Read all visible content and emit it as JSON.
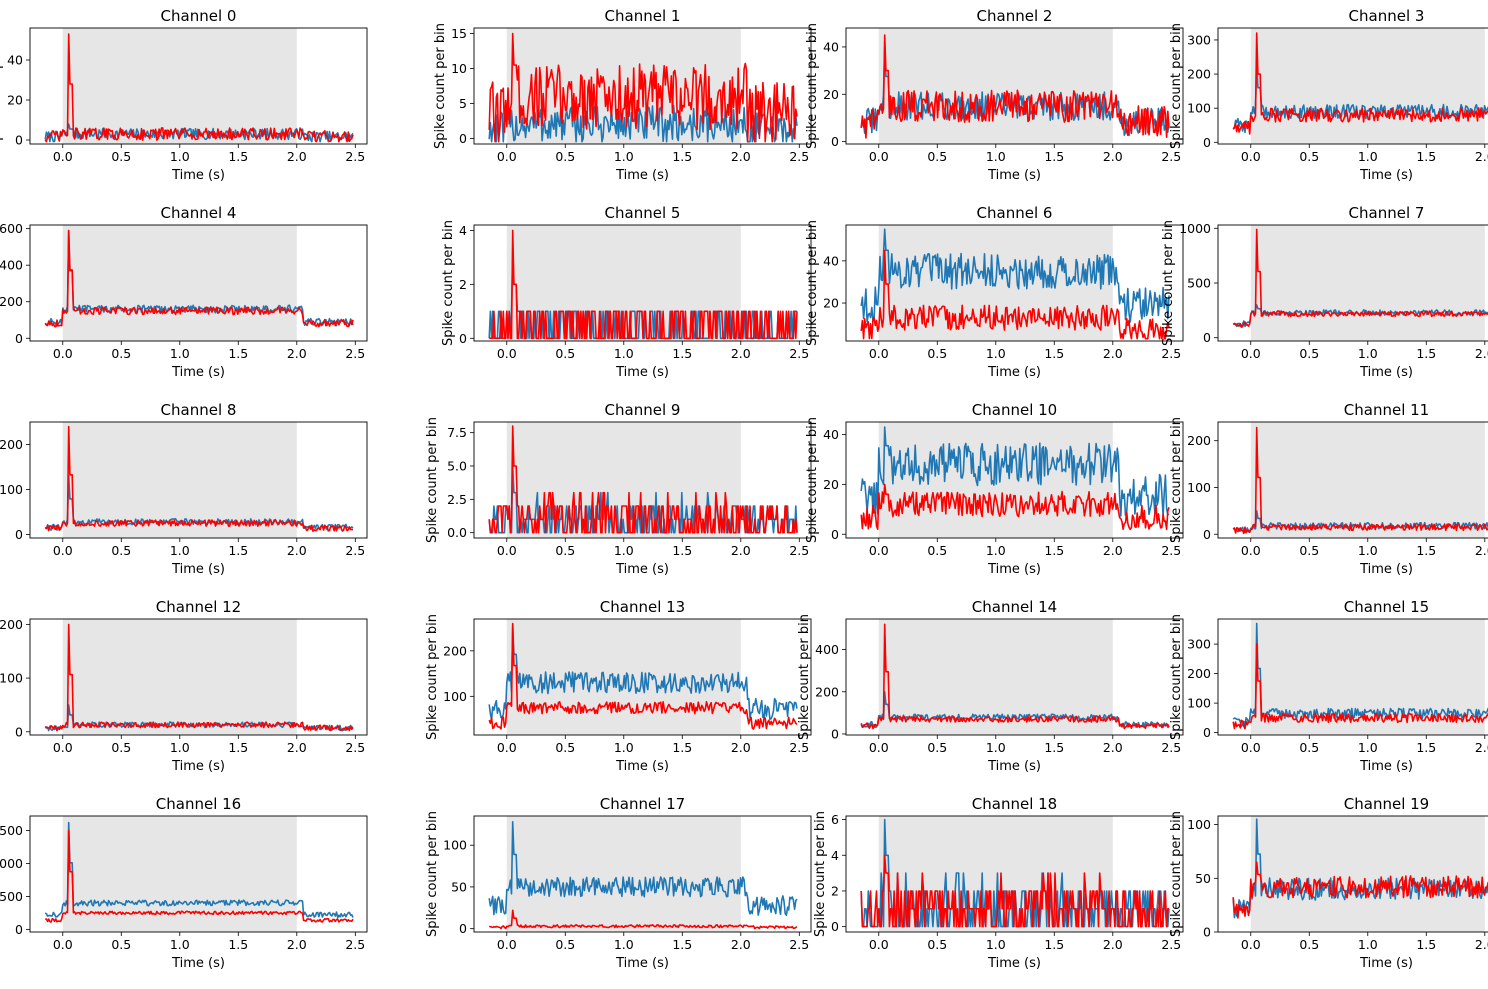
{
  "figure": {
    "xlabel": "Time (s)",
    "ylabel": "Spike count per bin",
    "x_range": [
      -0.15,
      2.48
    ],
    "xlim": [
      -0.28,
      2.6
    ],
    "x_ticks": [
      "0.0",
      "0.5",
      "1.0",
      "1.5",
      "2.0",
      "2.5"
    ],
    "x_tick_values": [
      0,
      0.5,
      1.0,
      1.5,
      2.0,
      2.5
    ],
    "stimulus_window": [
      0.0,
      2.0
    ],
    "colors": {
      "series_a": "#1f77b4",
      "series_b": "#ff0000",
      "shade": "#e6e6e6"
    }
  },
  "chart_data": [
    {
      "type": "line",
      "title": "Channel 0",
      "ylim": [
        -2,
        56
      ],
      "yticks": [
        "0",
        "20",
        "40"
      ],
      "ytick_values": [
        0,
        20,
        40
      ],
      "series": [
        {
          "name": "blue",
          "baseline": 3,
          "noise": 1.6,
          "peak": 8,
          "spikes": 0
        },
        {
          "name": "red",
          "baseline": 3,
          "noise": 1.8,
          "peak": 53,
          "spikes": 0
        }
      ],
      "note": "transient at 0.05s"
    },
    {
      "type": "line",
      "title": "Channel 1",
      "ylim": [
        -0.8,
        15.8
      ],
      "yticks": [
        "0",
        "5",
        "10",
        "15"
      ],
      "ytick_values": [
        0,
        5,
        10,
        15
      ],
      "series": [
        {
          "name": "blue",
          "baseline": 2,
          "noise": 1.6
        },
        {
          "name": "red",
          "baseline": 6,
          "noise": 2.8,
          "peak": 15
        }
      ]
    },
    {
      "type": "line",
      "title": "Channel 2",
      "ylim": [
        -1,
        48
      ],
      "yticks": [
        "0",
        "20",
        "40"
      ],
      "ytick_values": [
        0,
        20,
        40
      ],
      "series": [
        {
          "name": "blue",
          "baseline": 15,
          "noise": 3.5,
          "peak": 40
        },
        {
          "name": "red",
          "baseline": 15,
          "noise": 4,
          "peak": 45
        }
      ]
    },
    {
      "type": "line",
      "title": "Channel 3",
      "ylim": [
        -5,
        335
      ],
      "yticks": [
        "0",
        "100",
        "200",
        "300"
      ],
      "ytick_values": [
        0,
        100,
        200,
        300
      ],
      "series": [
        {
          "name": "blue",
          "baseline": 90,
          "noise": 12,
          "peak": 230
        },
        {
          "name": "red",
          "baseline": 80,
          "noise": 12,
          "peak": 320
        }
      ]
    },
    {
      "type": "line",
      "title": "Channel 4",
      "ylim": [
        -15,
        620
      ],
      "yticks": [
        "0",
        "200",
        "400",
        "600"
      ],
      "ytick_values": [
        0,
        200,
        400,
        600
      ],
      "series": [
        {
          "name": "blue",
          "baseline": 160,
          "noise": 12,
          "peak": 590
        },
        {
          "name": "red",
          "baseline": 150,
          "noise": 12,
          "peak": 590
        }
      ]
    },
    {
      "type": "line",
      "title": "Channel 5",
      "ylim": [
        -0.1,
        4.2
      ],
      "yticks": [
        "0",
        "2",
        "4"
      ],
      "ytick_values": [
        0,
        2,
        4
      ],
      "series": [
        {
          "name": "blue",
          "baseline": 0.3,
          "noise": 0.5,
          "peak": 3
        },
        {
          "name": "red",
          "baseline": 0.4,
          "noise": 0.6,
          "peak": 4
        }
      ]
    },
    {
      "type": "line",
      "title": "Channel 6",
      "ylim": [
        2,
        57
      ],
      "yticks": [
        "20",
        "40"
      ],
      "ytick_values": [
        20,
        40
      ],
      "series": [
        {
          "name": "blue",
          "baseline": 35,
          "noise": 5,
          "peak": 55
        },
        {
          "name": "red",
          "baseline": 13,
          "noise": 3.5,
          "peak": 45
        }
      ]
    },
    {
      "type": "line",
      "title": "Channel 7",
      "ylim": [
        -30,
        1030
      ],
      "yticks": [
        "0",
        "500",
        "1000"
      ],
      "ytick_values": [
        0,
        500,
        1000
      ],
      "series": [
        {
          "name": "blue",
          "baseline": 230,
          "noise": 15,
          "peak": 300
        },
        {
          "name": "red",
          "baseline": 220,
          "noise": 15,
          "peak": 990
        }
      ]
    },
    {
      "type": "line",
      "title": "Channel 8",
      "ylim": [
        -8,
        250
      ],
      "yticks": [
        "0",
        "100",
        "200"
      ],
      "ytick_values": [
        0,
        100,
        200
      ],
      "series": [
        {
          "name": "blue",
          "baseline": 28,
          "noise": 4,
          "peak": 130
        },
        {
          "name": "red",
          "baseline": 25,
          "noise": 4,
          "peak": 240
        }
      ]
    },
    {
      "type": "line",
      "title": "Channel 9",
      "ylim": [
        -0.4,
        8.3
      ],
      "yticks": [
        "0.0",
        "2.5",
        "5.0",
        "7.5"
      ],
      "ytick_values": [
        0,
        2.5,
        5,
        7.5
      ],
      "series": [
        {
          "name": "blue",
          "baseline": 1,
          "noise": 1,
          "peak": 5
        },
        {
          "name": "red",
          "baseline": 1,
          "noise": 1,
          "peak": 8
        }
      ]
    },
    {
      "type": "line",
      "title": "Channel 10",
      "ylim": [
        -1.5,
        45
      ],
      "yticks": [
        "0",
        "20",
        "40"
      ],
      "ytick_values": [
        0,
        20,
        40
      ],
      "series": [
        {
          "name": "blue",
          "baseline": 28,
          "noise": 5,
          "peak": 43
        },
        {
          "name": "red",
          "baseline": 12,
          "noise": 3,
          "peak": 20
        }
      ]
    },
    {
      "type": "line",
      "title": "Channel 11",
      "ylim": [
        -8,
        240
      ],
      "yticks": [
        "0",
        "100",
        "200"
      ],
      "ytick_values": [
        0,
        100,
        200
      ],
      "series": [
        {
          "name": "blue",
          "baseline": 18,
          "noise": 4,
          "peak": 50
        },
        {
          "name": "red",
          "baseline": 15,
          "noise": 4,
          "peak": 228
        }
      ]
    },
    {
      "type": "line",
      "title": "Channel 12",
      "ylim": [
        -6,
        210
      ],
      "yticks": [
        "0",
        "100",
        "200"
      ],
      "ytick_values": [
        0,
        100,
        200
      ],
      "series": [
        {
          "name": "blue",
          "baseline": 13,
          "noise": 3,
          "peak": 50
        },
        {
          "name": "red",
          "baseline": 13,
          "noise": 3,
          "peak": 200
        }
      ]
    },
    {
      "type": "line",
      "title": "Channel 13",
      "ylim": [
        15,
        270
      ],
      "yticks": [
        "100",
        "200"
      ],
      "ytick_values": [
        100,
        200
      ],
      "series": [
        {
          "name": "blue",
          "baseline": 130,
          "noise": 14,
          "peak": 255
        },
        {
          "name": "red",
          "baseline": 75,
          "noise": 8,
          "peak": 260
        }
      ]
    },
    {
      "type": "line",
      "title": "Channel 14",
      "ylim": [
        -5,
        545
      ],
      "yticks": [
        "0",
        "200",
        "400"
      ],
      "ytick_values": [
        0,
        200,
        400
      ],
      "series": [
        {
          "name": "blue",
          "baseline": 80,
          "noise": 8,
          "peak": 200
        },
        {
          "name": "red",
          "baseline": 70,
          "noise": 8,
          "peak": 520
        }
      ]
    },
    {
      "type": "line",
      "title": "Channel 15",
      "ylim": [
        -8,
        385
      ],
      "yticks": [
        "0",
        "100",
        "200",
        "300"
      ],
      "ytick_values": [
        0,
        100,
        200,
        300
      ],
      "series": [
        {
          "name": "blue",
          "baseline": 65,
          "noise": 10,
          "peak": 370
        },
        {
          "name": "red",
          "baseline": 50,
          "noise": 9,
          "peak": 300
        }
      ]
    },
    {
      "type": "line",
      "title": "Channel 16",
      "ylim": [
        -40,
        1720
      ],
      "yticks": [
        "0",
        "500",
        "1000",
        "1500"
      ],
      "ytick_values": [
        0,
        500,
        1000,
        1500
      ],
      "series": [
        {
          "name": "blue",
          "baseline": 400,
          "noise": 25,
          "peak": 1620
        },
        {
          "name": "red",
          "baseline": 250,
          "noise": 15,
          "peak": 1500
        }
      ]
    },
    {
      "type": "line",
      "title": "Channel 17",
      "ylim": [
        -4,
        135
      ],
      "yticks": [
        "0",
        "50",
        "100"
      ],
      "ytick_values": [
        0,
        50,
        100
      ],
      "series": [
        {
          "name": "blue",
          "baseline": 50,
          "noise": 7,
          "peak": 128
        },
        {
          "name": "red",
          "baseline": 3,
          "noise": 1,
          "peak": 22
        }
      ]
    },
    {
      "type": "line",
      "title": "Channel 18",
      "ylim": [
        -0.3,
        6.2
      ],
      "yticks": [
        "0",
        "2",
        "4",
        "6"
      ],
      "ytick_values": [
        0,
        2,
        4,
        6
      ],
      "series": [
        {
          "name": "blue",
          "baseline": 1,
          "noise": 1,
          "peak": 6
        },
        {
          "name": "red",
          "baseline": 1,
          "noise": 1,
          "peak": 4
        }
      ]
    },
    {
      "type": "line",
      "title": "Channel 19",
      "ylim": [
        0,
        108
      ],
      "yticks": [
        "0",
        "50",
        "100"
      ],
      "ytick_values": [
        0,
        50,
        100
      ],
      "series": [
        {
          "name": "blue",
          "baseline": 40,
          "noise": 6,
          "peak": 105
        },
        {
          "name": "red",
          "baseline": 42,
          "noise": 6,
          "peak": 65
        }
      ]
    }
  ]
}
